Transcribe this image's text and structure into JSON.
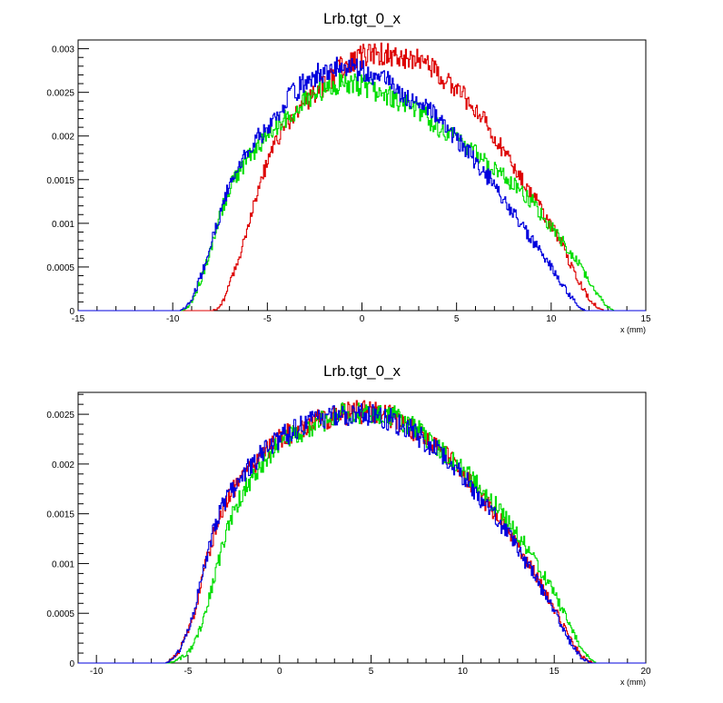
{
  "chart_data": [
    {
      "type": "line",
      "title": "Lrb.tgt_0_x",
      "xlabel": "x (mm)",
      "ylabel": "",
      "xlim": [
        -15,
        15
      ],
      "ylim": [
        0,
        0.0031
      ],
      "grid": false,
      "legend": "none",
      "xticks": [
        -15,
        -10,
        -5,
        0,
        5,
        10,
        15
      ],
      "yticks": [
        0,
        0.0005,
        0.001,
        0.0015,
        0.002,
        0.0025,
        0.003
      ],
      "series": [
        {
          "color": "#dd0000",
          "points": [
            [
              -15,
              0
            ],
            [
              -7.9,
              0
            ],
            [
              -7.6,
              3e-05
            ],
            [
              -7.3,
              0.00012
            ],
            [
              -7.0,
              0.0003
            ],
            [
              -6.5,
              0.0006
            ],
            [
              -6.0,
              0.001
            ],
            [
              -5.5,
              0.00138
            ],
            [
              -5.0,
              0.0017
            ],
            [
              -4.5,
              0.00195
            ],
            [
              -4.0,
              0.00213
            ],
            [
              -3.0,
              0.0024
            ],
            [
              -2.0,
              0.00258
            ],
            [
              -1.0,
              0.0028
            ],
            [
              0.0,
              0.00292
            ],
            [
              1.0,
              0.00294
            ],
            [
              2.0,
              0.00292
            ],
            [
              3.0,
              0.00287
            ],
            [
              4.0,
              0.00273
            ],
            [
              5.0,
              0.00255
            ],
            [
              6.0,
              0.0023
            ],
            [
              7.0,
              0.002
            ],
            [
              8.0,
              0.00168
            ],
            [
              9.0,
              0.00133
            ],
            [
              10.0,
              0.00097
            ],
            [
              10.5,
              0.00078
            ],
            [
              11.0,
              0.00055
            ],
            [
              11.5,
              0.00033
            ],
            [
              12.0,
              0.00014
            ],
            [
              12.5,
              3e-05
            ],
            [
              12.8,
              0
            ],
            [
              15,
              0
            ]
          ]
        },
        {
          "color": "#00dd00",
          "points": [
            [
              -15,
              0
            ],
            [
              -9.5,
              0
            ],
            [
              -9.2,
              4e-05
            ],
            [
              -9.0,
              0.0001
            ],
            [
              -8.5,
              0.00035
            ],
            [
              -8.0,
              0.0007
            ],
            [
              -7.5,
              0.0011
            ],
            [
              -7.0,
              0.0014
            ],
            [
              -6.5,
              0.0016
            ],
            [
              -6.0,
              0.00175
            ],
            [
              -5.5,
              0.00188
            ],
            [
              -5.0,
              0.002
            ],
            [
              -4.0,
              0.0022
            ],
            [
              -3.0,
              0.0024
            ],
            [
              -2.0,
              0.00255
            ],
            [
              -1.0,
              0.0026
            ],
            [
              0.0,
              0.00258
            ],
            [
              1.0,
              0.0025
            ],
            [
              2.0,
              0.0024
            ],
            [
              3.0,
              0.0023
            ],
            [
              4.0,
              0.0021
            ],
            [
              5.0,
              0.00195
            ],
            [
              6.0,
              0.0018
            ],
            [
              7.0,
              0.00163
            ],
            [
              8.0,
              0.00145
            ],
            [
              9.0,
              0.00125
            ],
            [
              10.0,
              0.00095
            ],
            [
              11.0,
              0.00068
            ],
            [
              11.5,
              0.00052
            ],
            [
              12.0,
              0.00035
            ],
            [
              12.5,
              0.00017
            ],
            [
              13.0,
              4e-05
            ],
            [
              13.3,
              0
            ],
            [
              15,
              0
            ]
          ]
        },
        {
          "color": "#0000dd",
          "points": [
            [
              -15,
              0
            ],
            [
              -9.6,
              0
            ],
            [
              -9.3,
              4e-05
            ],
            [
              -9.0,
              0.00012
            ],
            [
              -8.5,
              0.0004
            ],
            [
              -8.0,
              0.00075
            ],
            [
              -7.5,
              0.0011
            ],
            [
              -7.0,
              0.00145
            ],
            [
              -6.5,
              0.00165
            ],
            [
              -6.0,
              0.00185
            ],
            [
              -5.5,
              0.00198
            ],
            [
              -5.0,
              0.0021
            ],
            [
              -4.0,
              0.0024
            ],
            [
              -3.0,
              0.00262
            ],
            [
              -2.0,
              0.00275
            ],
            [
              -1.0,
              0.0028
            ],
            [
              0.0,
              0.00275
            ],
            [
              1.0,
              0.00268
            ],
            [
              2.0,
              0.00252
            ],
            [
              3.0,
              0.00238
            ],
            [
              4.0,
              0.0022
            ],
            [
              5.0,
              0.00198
            ],
            [
              6.0,
              0.0017
            ],
            [
              7.0,
              0.00145
            ],
            [
              8.0,
              0.00112
            ],
            [
              9.0,
              0.0008
            ],
            [
              10.0,
              0.0005
            ],
            [
              10.5,
              0.00033
            ],
            [
              11.0,
              0.00017
            ],
            [
              11.5,
              4e-05
            ],
            [
              11.8,
              0
            ],
            [
              15,
              0
            ]
          ]
        }
      ]
    },
    {
      "type": "line",
      "title": "Lrb.tgt_0_x",
      "xlabel": "x (mm)",
      "ylabel": "",
      "xlim": [
        -11,
        20
      ],
      "ylim": [
        0,
        0.00272
      ],
      "grid": false,
      "legend": "none",
      "xticks": [
        -10,
        -5,
        0,
        5,
        10,
        15,
        20
      ],
      "yticks": [
        0,
        0.0005,
        0.001,
        0.0015,
        0.002,
        0.0025
      ],
      "series": [
        {
          "color": "#dd0000",
          "points": [
            [
              -11,
              0
            ],
            [
              -6.2,
              0
            ],
            [
              -5.9,
              3e-05
            ],
            [
              -5.5,
              0.00012
            ],
            [
              -5.0,
              0.0003
            ],
            [
              -4.5,
              0.0006
            ],
            [
              -4.0,
              0.00102
            ],
            [
              -3.5,
              0.00135
            ],
            [
              -3.0,
              0.0016
            ],
            [
              -2.0,
              0.00188
            ],
            [
              -1.0,
              0.00208
            ],
            [
              0.0,
              0.00225
            ],
            [
              1.0,
              0.00235
            ],
            [
              2.0,
              0.00243
            ],
            [
              3.0,
              0.00248
            ],
            [
              4.0,
              0.00252
            ],
            [
              5.0,
              0.00252
            ],
            [
              6.0,
              0.00248
            ],
            [
              7.0,
              0.00238
            ],
            [
              8.0,
              0.00222
            ],
            [
              9.0,
              0.0021
            ],
            [
              10.0,
              0.0019
            ],
            [
              11.0,
              0.00168
            ],
            [
              12.0,
              0.00145
            ],
            [
              13.0,
              0.00118
            ],
            [
              14.0,
              0.00088
            ],
            [
              15.0,
              0.00055
            ],
            [
              15.5,
              0.00037
            ],
            [
              16.0,
              0.0002
            ],
            [
              16.5,
              7e-05
            ],
            [
              17.0,
              1e-05
            ],
            [
              17.2,
              0
            ],
            [
              20,
              0
            ]
          ]
        },
        {
          "color": "#00dd00",
          "points": [
            [
              -11,
              0
            ],
            [
              -6.0,
              0
            ],
            [
              -5.5,
              4e-05
            ],
            [
              -5.0,
              0.0001
            ],
            [
              -4.5,
              0.00025
            ],
            [
              -4.0,
              0.00055
            ],
            [
              -3.5,
              0.0009
            ],
            [
              -3.0,
              0.00125
            ],
            [
              -2.5,
              0.00152
            ],
            [
              -2.0,
              0.00172
            ],
            [
              -1.0,
              0.002
            ],
            [
              0.0,
              0.0022
            ],
            [
              1.0,
              0.00232
            ],
            [
              2.0,
              0.0024
            ],
            [
              3.0,
              0.00248
            ],
            [
              4.0,
              0.00252
            ],
            [
              5.0,
              0.00253
            ],
            [
              6.0,
              0.0025
            ],
            [
              7.0,
              0.0024
            ],
            [
              8.0,
              0.00228
            ],
            [
              9.0,
              0.00212
            ],
            [
              10.0,
              0.00195
            ],
            [
              11.0,
              0.00175
            ],
            [
              12.0,
              0.00155
            ],
            [
              13.0,
              0.0013
            ],
            [
              14.0,
              0.00102
            ],
            [
              15.0,
              0.0007
            ],
            [
              15.5,
              0.00052
            ],
            [
              16.0,
              0.00032
            ],
            [
              16.5,
              0.00014
            ],
            [
              17.0,
              3e-05
            ],
            [
              17.3,
              0
            ],
            [
              20,
              0
            ]
          ]
        },
        {
          "color": "#0000dd",
          "points": [
            [
              -11,
              0
            ],
            [
              -6.2,
              0
            ],
            [
              -5.9,
              3e-05
            ],
            [
              -5.5,
              0.00012
            ],
            [
              -5.0,
              0.00032
            ],
            [
              -4.5,
              0.00065
            ],
            [
              -4.0,
              0.00105
            ],
            [
              -3.5,
              0.0014
            ],
            [
              -3.0,
              0.00162
            ],
            [
              -2.0,
              0.0019
            ],
            [
              -1.0,
              0.0021
            ],
            [
              0.0,
              0.00226
            ],
            [
              1.0,
              0.00236
            ],
            [
              2.0,
              0.00243
            ],
            [
              3.0,
              0.00248
            ],
            [
              4.0,
              0.0025
            ],
            [
              5.0,
              0.0025
            ],
            [
              6.0,
              0.00245
            ],
            [
              7.0,
              0.00236
            ],
            [
              8.0,
              0.00222
            ],
            [
              9.0,
              0.00208
            ],
            [
              10.0,
              0.00188
            ],
            [
              11.0,
              0.00165
            ],
            [
              12.0,
              0.00142
            ],
            [
              13.0,
              0.00115
            ],
            [
              14.0,
              0.00085
            ],
            [
              15.0,
              0.00052
            ],
            [
              15.5,
              0.00034
            ],
            [
              16.0,
              0.00017
            ],
            [
              16.5,
              5e-05
            ],
            [
              17.0,
              0
            ],
            [
              20,
              0
            ]
          ]
        }
      ]
    }
  ]
}
